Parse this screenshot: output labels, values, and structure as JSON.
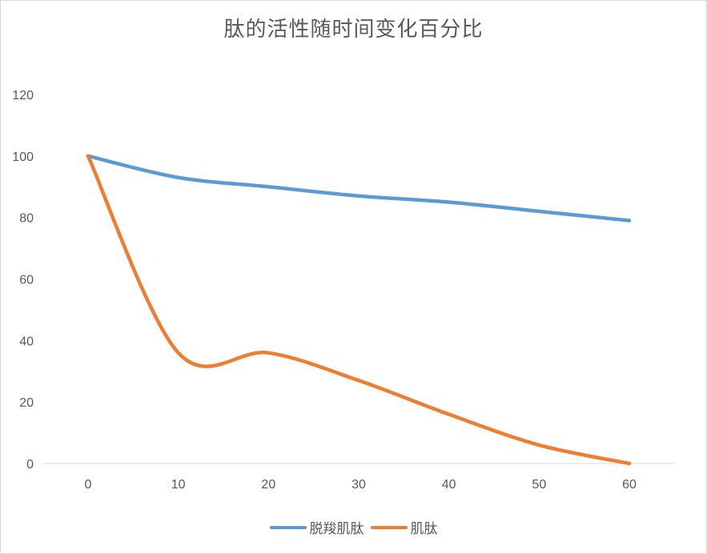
{
  "chart_data": {
    "type": "line",
    "title": "肽的活性随时间变化百分比",
    "xlabel": "",
    "ylabel": "",
    "x": [
      0,
      10,
      20,
      30,
      40,
      50,
      60
    ],
    "ylim": [
      0,
      120
    ],
    "yticks": [
      0,
      20,
      40,
      60,
      80,
      100,
      120
    ],
    "grid": false,
    "legend_position": "bottom",
    "series": [
      {
        "name": "脱羧肌肽",
        "color": "#5b9bd5",
        "values": [
          100,
          93,
          90,
          87,
          85,
          82,
          79
        ]
      },
      {
        "name": "肌肽",
        "color": "#ed7d31",
        "values": [
          100,
          36,
          36,
          27,
          16,
          6,
          0
        ]
      }
    ]
  }
}
